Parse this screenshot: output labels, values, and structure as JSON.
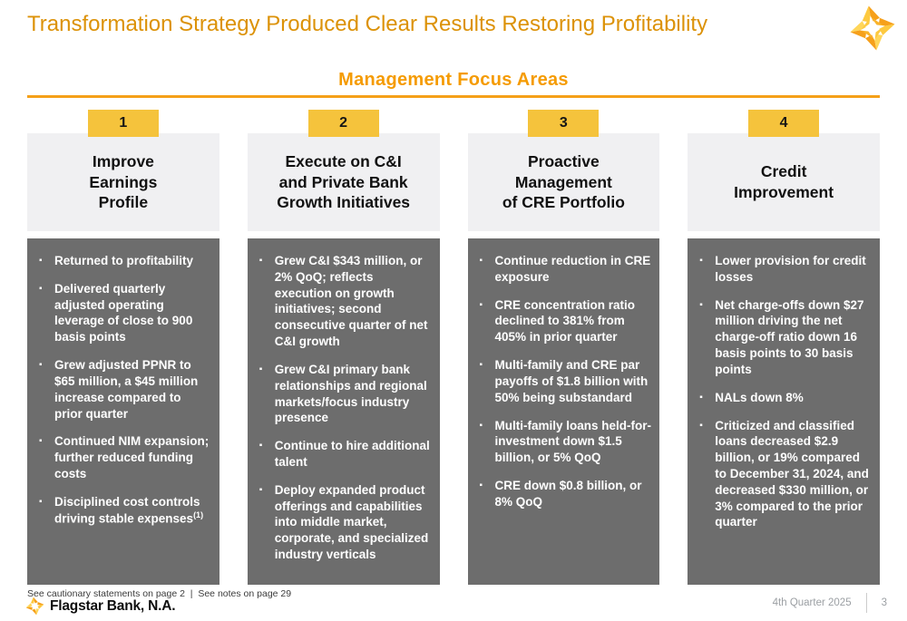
{
  "slide": {
    "title": "Transformation Strategy Produced Clear Results Restoring Profitability",
    "section_heading": "Management Focus Areas",
    "columns": [
      {
        "number": "1",
        "title_lines": [
          "Improve",
          "Earnings",
          "Profile"
        ],
        "bullets": [
          {
            "text": "Returned to profitability"
          },
          {
            "text": "Delivered quarterly adjusted operating leverage of close to 900 basis points"
          },
          {
            "text": "Grew adjusted PPNR to $65 million, a $45 million increase compared to prior quarter"
          },
          {
            "text": "Continued NIM expansion; further reduced funding costs"
          },
          {
            "text": "Disciplined cost controls driving stable expenses",
            "sup": "(1)"
          }
        ]
      },
      {
        "number": "2",
        "title_lines": [
          "Execute on C&I",
          "and Private Bank",
          "Growth Initiatives"
        ],
        "bullets": [
          {
            "text": "Grew C&I $343 million, or 2% QoQ; reflects execution on growth initiatives; second consecutive quarter of net C&I growth"
          },
          {
            "text": "Grew C&I primary bank relationships and regional markets/focus industry presence"
          },
          {
            "text": "Continue to hire additional talent"
          },
          {
            "text": "Deploy expanded product offerings and capabilities into middle market, corporate, and specialized industry verticals"
          }
        ]
      },
      {
        "number": "3",
        "title_lines": [
          "Proactive",
          "Management",
          "of CRE Portfolio"
        ],
        "bullets": [
          {
            "text": "Continue reduction in CRE exposure"
          },
          {
            "text": "CRE concentration ratio declined to 381% from 405% in prior quarter"
          },
          {
            "text": "Multi-family and CRE par payoffs of $1.8 billion with 50% being substandard"
          },
          {
            "text": "Multi-family loans held-for-investment down $1.5 billion, or 5% QoQ"
          },
          {
            "text": "CRE down $0.8 billion, or 8% QoQ"
          }
        ]
      },
      {
        "number": "4",
        "title_lines": [
          "Credit",
          "Improvement"
        ],
        "bullets": [
          {
            "text": "Lower provision for credit losses"
          },
          {
            "text": "Net charge-offs down $27 million driving the net charge-off ratio down 16 basis points to 30 basis points"
          },
          {
            "text": "NALs down 8%"
          },
          {
            "text": "Criticized and classified loans decreased $2.9 billion, or 19% compared to December 31, 2024, and decreased $330 million, or 3% compared to the prior quarter"
          }
        ]
      }
    ],
    "footnote": "See cautionary statements on page 2  |  See notes on page 29",
    "footer": {
      "bank_name": "Flagstar Bank, N.A.",
      "quarter": "4th Quarter 2025",
      "page_number": "3"
    },
    "icons": {
      "top_right": "flagstar-star-icon",
      "footer": "flagstar-star-icon"
    },
    "colors": {
      "title_orange": "#DC9208",
      "heading_orange": "#F59B00",
      "rule_orange": "#F5A018",
      "badge_yellow": "#F5C33C",
      "header_gray": "#F0F0F2",
      "panel_gray": "#6D6D6D",
      "footer_gray": "#9B9FA3"
    }
  }
}
